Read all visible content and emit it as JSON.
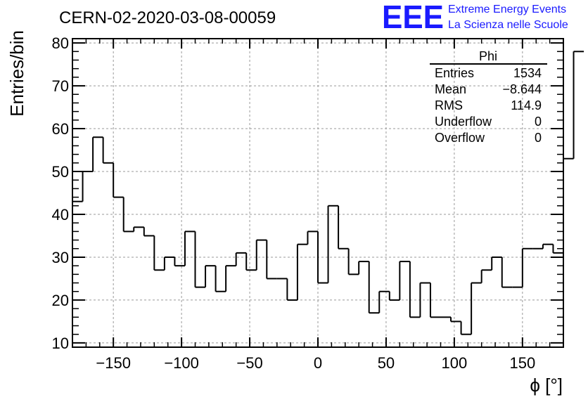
{
  "chart_data": {
    "type": "histogram",
    "title": "CERN-02-2020-03-08-00059",
    "xlabel": "ϕ [°]",
    "ylabel": "Entries/bin",
    "xlim": [
      -180,
      180
    ],
    "ylim": [
      9,
      81
    ],
    "grid": true,
    "x_ticks": [
      -150,
      -100,
      -50,
      0,
      50,
      100,
      150
    ],
    "x_tick_labels": [
      "−150",
      "−100",
      "−50",
      "0",
      "50",
      "100",
      "150"
    ],
    "y_ticks": [
      10,
      20,
      30,
      40,
      50,
      60,
      70,
      80
    ],
    "y_tick_labels": [
      "10",
      "20",
      "30",
      "40",
      "50",
      "60",
      "70",
      "80"
    ],
    "bin_width": 7.5,
    "bin_edges_start": -180,
    "values": [
      43,
      50,
      58,
      52,
      44,
      36,
      37,
      35,
      27,
      30,
      28,
      36,
      23,
      28,
      22,
      28,
      31,
      27,
      34,
      25,
      25,
      20,
      33,
      36,
      24,
      42,
      32,
      26,
      29,
      17,
      22,
      20,
      29,
      16,
      24,
      16,
      16,
      15,
      12,
      24,
      27,
      30,
      23,
      23,
      32,
      32,
      33,
      31,
      53,
      78
    ],
    "stats_box": {
      "name": "Phi",
      "rows": [
        {
          "label": "Entries",
          "value": "1534"
        },
        {
          "label": "Mean",
          "value": "−8.644"
        },
        {
          "label": "RMS",
          "value": "114.9"
        },
        {
          "label": "Underflow",
          "value": "0"
        },
        {
          "label": "Overflow",
          "value": "0"
        }
      ]
    },
    "colors": {
      "line": "#000000",
      "grid": "#999999",
      "logo": "#1a1aff"
    }
  },
  "logo": {
    "mark": "EEE",
    "line1": "Extreme Energy Events",
    "line2": "La Scienza nelle Scuole"
  }
}
